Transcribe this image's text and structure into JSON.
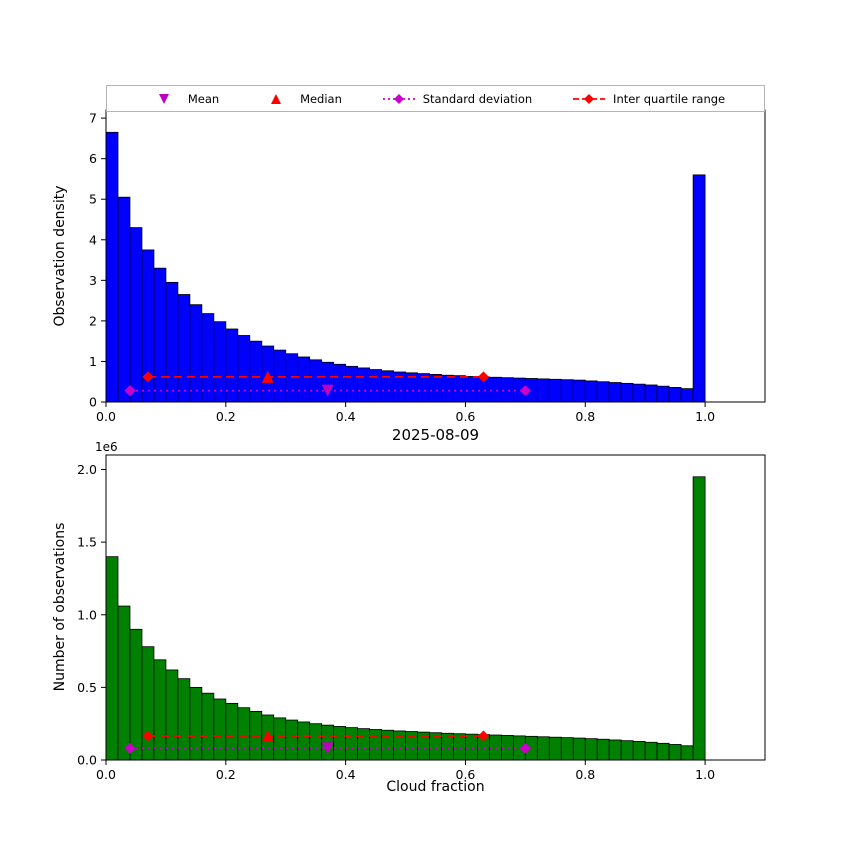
{
  "figure": {
    "title": "2025-08-09",
    "xlabel": "Cloud fraction",
    "background": "#ffffff"
  },
  "legend": {
    "items": [
      {
        "label": "Mean",
        "marker": "triangle-down",
        "color": "#bf00bf",
        "line": "none"
      },
      {
        "label": "Median",
        "marker": "triangle-up",
        "color": "#ff0000",
        "line": "none"
      },
      {
        "label": "Standard deviation",
        "marker": "diamond",
        "color": "#cc00cc",
        "line": "dotted"
      },
      {
        "label": "Inter quartile range",
        "marker": "diamond",
        "color": "#ff0000",
        "line": "dashed"
      }
    ]
  },
  "chart_data": [
    {
      "type": "bar",
      "name": "observation-density-histogram",
      "ylabel": "Observation density",
      "bar_color": "#0000ff",
      "bar_edge_color": "#000000",
      "bin_start": 0,
      "bin_width": 0.02,
      "values": [
        6.65,
        5.05,
        4.3,
        3.75,
        3.3,
        2.95,
        2.65,
        2.4,
        2.18,
        1.98,
        1.8,
        1.64,
        1.5,
        1.38,
        1.28,
        1.19,
        1.11,
        1.04,
        0.98,
        0.93,
        0.88,
        0.84,
        0.8,
        0.77,
        0.74,
        0.72,
        0.7,
        0.68,
        0.66,
        0.65,
        0.63,
        0.62,
        0.61,
        0.6,
        0.59,
        0.58,
        0.57,
        0.56,
        0.55,
        0.54,
        0.52,
        0.5,
        0.48,
        0.46,
        0.44,
        0.42,
        0.39,
        0.36,
        0.33,
        5.6
      ],
      "xlim": [
        0,
        1.1
      ],
      "ylim": [
        0,
        7.2
      ],
      "xtick_values": [
        0,
        0.2,
        0.4,
        0.6,
        0.8,
        1.0
      ],
      "xtick_labels": [
        "0.0",
        "0.2",
        "0.4",
        "0.6",
        "0.8",
        "1.0"
      ],
      "ytick_values": [
        0,
        1,
        2,
        3,
        4,
        5,
        6,
        7
      ],
      "ytick_labels": [
        "0",
        "1",
        "2",
        "3",
        "4",
        "5",
        "6",
        "7"
      ],
      "stats": {
        "mean": 0.37,
        "median": 0.27,
        "std_low": 0.04,
        "std_high": 0.7,
        "q1": 0.07,
        "q3": 0.63,
        "iqr_line_y": 0.62,
        "std_line_y": 0.28,
        "mean_color": "#bf00bf",
        "median_color": "#ff0000",
        "std_color": "#cc00cc",
        "iqr_color": "#ff0000"
      }
    },
    {
      "type": "bar",
      "name": "observation-count-histogram",
      "ylabel": "Number of observations",
      "y_offset_label": "1e6",
      "bar_color": "#008000",
      "bar_edge_color": "#000000",
      "bin_start": 0,
      "bin_width": 0.02,
      "values": [
        1400000,
        1060000,
        900000,
        780000,
        690000,
        620000,
        560000,
        500000,
        460000,
        420000,
        390000,
        360000,
        335000,
        310000,
        290000,
        275000,
        262000,
        250000,
        240000,
        231000,
        223000,
        216000,
        210000,
        205000,
        200000,
        196000,
        192000,
        188000,
        184000,
        181000,
        178000,
        175000,
        172000,
        169000,
        166000,
        163000,
        160000,
        157000,
        154000,
        151000,
        147000,
        143000,
        138000,
        133000,
        128000,
        122000,
        115000,
        107000,
        98000,
        1950000
      ],
      "xlim": [
        0,
        1.1
      ],
      "ylim": [
        0,
        2100000
      ],
      "xtick_values": [
        0,
        0.2,
        0.4,
        0.6,
        0.8,
        1.0
      ],
      "xtick_labels": [
        "0.0",
        "0.2",
        "0.4",
        "0.6",
        "0.8",
        "1.0"
      ],
      "ytick_values": [
        0,
        500000,
        1000000,
        1500000,
        2000000
      ],
      "ytick_labels": [
        "0.0",
        "0.5",
        "1.0",
        "1.5",
        "2.0"
      ],
      "stats": {
        "mean": 0.37,
        "median": 0.27,
        "std_low": 0.04,
        "std_high": 0.7,
        "q1": 0.07,
        "q3": 0.63,
        "iqr_line_y": 165000,
        "std_line_y": 80000,
        "mean_color": "#bf00bf",
        "median_color": "#ff0000",
        "std_color": "#cc00cc",
        "iqr_color": "#ff0000"
      }
    }
  ]
}
